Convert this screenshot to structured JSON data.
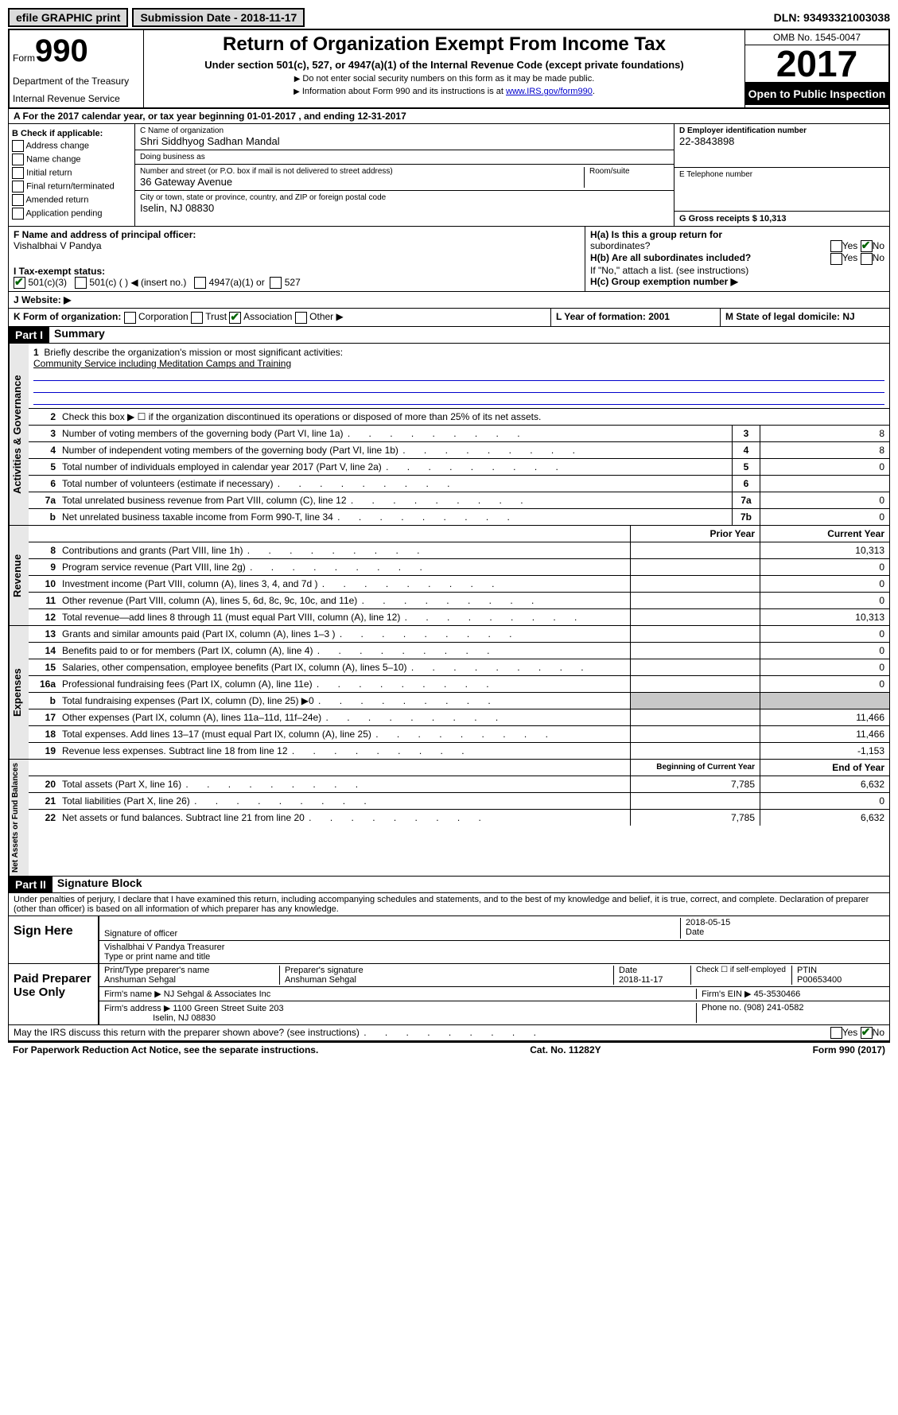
{
  "topbar": {
    "efile_label": "efile GRAPHIC print",
    "submission_label": "Submission Date - 2018-11-17",
    "dln_label": "DLN: 93493321003038"
  },
  "header": {
    "form_prefix": "Form",
    "form_number": "990",
    "department": "Department of the Treasury",
    "irs": "Internal Revenue Service",
    "title": "Return of Organization Exempt From Income Tax",
    "subtitle": "Under section 501(c), 527, or 4947(a)(1) of the Internal Revenue Code (except private foundations)",
    "note1": "Do not enter social security numbers on this form as it may be made public.",
    "note2_prefix": "Information about Form 990 and its instructions is at ",
    "note2_link": "www.IRS.gov/form990",
    "omb": "OMB No. 1545-0047",
    "year": "2017",
    "inspection": "Open to Public Inspection"
  },
  "row_a": "A For the 2017 calendar year, or tax year beginning 01-01-2017    , and ending 12-31-2017",
  "col_b": {
    "header": "B Check if applicable:",
    "items": [
      "Address change",
      "Name change",
      "Initial return",
      "Final return/terminated",
      "Amended return",
      "Application pending"
    ]
  },
  "col_c": {
    "name_label": "C Name of organization",
    "name": "Shri Siddhyog Sadhan Mandal",
    "dba_label": "Doing business as",
    "dba": "",
    "street_label": "Number and street (or P.O. box if mail is not delivered to street address)",
    "street": "36 Gateway Avenue",
    "room_label": "Room/suite",
    "city_label": "City or town, state or province, country, and ZIP or foreign postal code",
    "city": "Iselin, NJ  08830"
  },
  "col_d": {
    "ein_label": "D Employer identification number",
    "ein": "22-3843898",
    "phone_label": "E Telephone number",
    "phone": "",
    "receipts_label": "G Gross receipts $ 10,313"
  },
  "officer": {
    "label": "F  Name and address of principal officer:",
    "name": "Vishalbhai V Pandya"
  },
  "tax_status": {
    "label": "I  Tax-exempt status:",
    "opt1": "501(c)(3)",
    "opt2": "501(c) (  ) ◀ (insert no.)",
    "opt3": "4947(a)(1) or",
    "opt4": "527"
  },
  "h_section": {
    "ha": "H(a)  Is this a group return for",
    "ha2": "subordinates?",
    "hb": "H(b)  Are all subordinates included?",
    "hb_note": "If \"No,\" attach a list. (see instructions)",
    "hc": "H(c)  Group exemption number ▶",
    "yes": "Yes",
    "no": "No"
  },
  "website_label": "J  Website: ▶",
  "form_org": {
    "label": "K Form of organization:",
    "opts": [
      "Corporation",
      "Trust",
      "Association",
      "Other ▶"
    ]
  },
  "year_formation": "L Year of formation: 2001",
  "state_domicile": "M State of legal domicile: NJ",
  "part1": {
    "header": "Part I",
    "title": "Summary",
    "q1_label": "Briefly describe the organization's mission or most significant activities:",
    "q1_val": "Community Service including Meditation Camps and Training",
    "q2": "Check this box ▶ ☐  if the organization discontinued its operations or disposed of more than 25% of its net assets.",
    "lines_gov": [
      {
        "n": "3",
        "t": "Number of voting members of the governing body (Part VI, line 1a)",
        "box": "3",
        "v": "8"
      },
      {
        "n": "4",
        "t": "Number of independent voting members of the governing body (Part VI, line 1b)",
        "box": "4",
        "v": "8"
      },
      {
        "n": "5",
        "t": "Total number of individuals employed in calendar year 2017 (Part V, line 2a)",
        "box": "5",
        "v": "0"
      },
      {
        "n": "6",
        "t": "Total number of volunteers (estimate if necessary)",
        "box": "6",
        "v": ""
      },
      {
        "n": "7a",
        "t": "Total unrelated business revenue from Part VIII, column (C), line 12",
        "box": "7a",
        "v": "0"
      },
      {
        "n": "b",
        "t": "Net unrelated business taxable income from Form 990-T, line 34",
        "box": "7b",
        "v": "0"
      }
    ],
    "col_prior": "Prior Year",
    "col_current": "Current Year",
    "lines_rev": [
      {
        "n": "8",
        "t": "Contributions and grants (Part VIII, line 1h)",
        "p": "",
        "c": "10,313"
      },
      {
        "n": "9",
        "t": "Program service revenue (Part VIII, line 2g)",
        "p": "",
        "c": "0"
      },
      {
        "n": "10",
        "t": "Investment income (Part VIII, column (A), lines 3, 4, and 7d )",
        "p": "",
        "c": "0"
      },
      {
        "n": "11",
        "t": "Other revenue (Part VIII, column (A), lines 5, 6d, 8c, 9c, 10c, and 11e)",
        "p": "",
        "c": "0"
      },
      {
        "n": "12",
        "t": "Total revenue—add lines 8 through 11 (must equal Part VIII, column (A), line 12)",
        "p": "",
        "c": "10,313"
      }
    ],
    "lines_exp": [
      {
        "n": "13",
        "t": "Grants and similar amounts paid (Part IX, column (A), lines 1–3 )",
        "p": "",
        "c": "0"
      },
      {
        "n": "14",
        "t": "Benefits paid to or for members (Part IX, column (A), line 4)",
        "p": "",
        "c": "0"
      },
      {
        "n": "15",
        "t": "Salaries, other compensation, employee benefits (Part IX, column (A), lines 5–10)",
        "p": "",
        "c": "0"
      },
      {
        "n": "16a",
        "t": "Professional fundraising fees (Part IX, column (A), line 11e)",
        "p": "",
        "c": "0"
      },
      {
        "n": "b",
        "t": "Total fundraising expenses (Part IX, column (D), line 25) ▶0",
        "p": "shade",
        "c": "shade"
      },
      {
        "n": "17",
        "t": "Other expenses (Part IX, column (A), lines 11a–11d, 11f–24e)",
        "p": "",
        "c": "11,466"
      },
      {
        "n": "18",
        "t": "Total expenses. Add lines 13–17 (must equal Part IX, column (A), line 25)",
        "p": "",
        "c": "11,466"
      },
      {
        "n": "19",
        "t": "Revenue less expenses. Subtract line 18 from line 12",
        "p": "",
        "c": "-1,153"
      }
    ],
    "col_begin": "Beginning of Current Year",
    "col_end": "End of Year",
    "lines_net": [
      {
        "n": "20",
        "t": "Total assets (Part X, line 16)",
        "p": "7,785",
        "c": "6,632"
      },
      {
        "n": "21",
        "t": "Total liabilities (Part X, line 26)",
        "p": "",
        "c": "0"
      },
      {
        "n": "22",
        "t": "Net assets or fund balances. Subtract line 21 from line 20",
        "p": "7,785",
        "c": "6,632"
      }
    ]
  },
  "vert_labels": {
    "gov": "Activities & Governance",
    "rev": "Revenue",
    "exp": "Expenses",
    "net": "Net Assets or Fund Balances"
  },
  "part2": {
    "header": "Part II",
    "title": "Signature Block",
    "penalties": "Under penalties of perjury, I declare that I have examined this return, including accompanying schedules and statements, and to the best of my knowledge and belief, it is true, correct, and complete. Declaration of preparer (other than officer) is based on all information of which preparer has any knowledge.",
    "sign_here": "Sign Here",
    "sig_officer": "Signature of officer",
    "sig_date": "2018-05-15",
    "date_label": "Date",
    "officer_name": "Vishalbhai V Pandya  Treasurer",
    "type_label": "Type or print name and title",
    "paid": "Paid Preparer Use Only",
    "prep_name_label": "Print/Type preparer's name",
    "prep_name": "Anshuman Sehgal",
    "prep_sig_label": "Preparer's signature",
    "prep_sig": "Anshuman Sehgal",
    "prep_date_label": "Date",
    "prep_date": "2018-11-17",
    "self_emp": "Check ☐ if self-employed",
    "ptin_label": "PTIN",
    "ptin": "P00653400",
    "firm_name_label": "Firm's name    ▶",
    "firm_name": "NJ Sehgal & Associates Inc",
    "firm_ein_label": "Firm's EIN ▶",
    "firm_ein": "45-3530466",
    "firm_addr_label": "Firm's address ▶",
    "firm_addr": "1100 Green Street Suite 203",
    "firm_city": "Iselin, NJ  08830",
    "phone_label": "Phone no.",
    "phone": "(908) 241-0582",
    "discuss": "May the IRS discuss this return with the preparer shown above? (see instructions)"
  },
  "footer": {
    "paperwork": "For Paperwork Reduction Act Notice, see the separate instructions.",
    "cat": "Cat. No. 11282Y",
    "form": "Form 990 (2017)"
  }
}
